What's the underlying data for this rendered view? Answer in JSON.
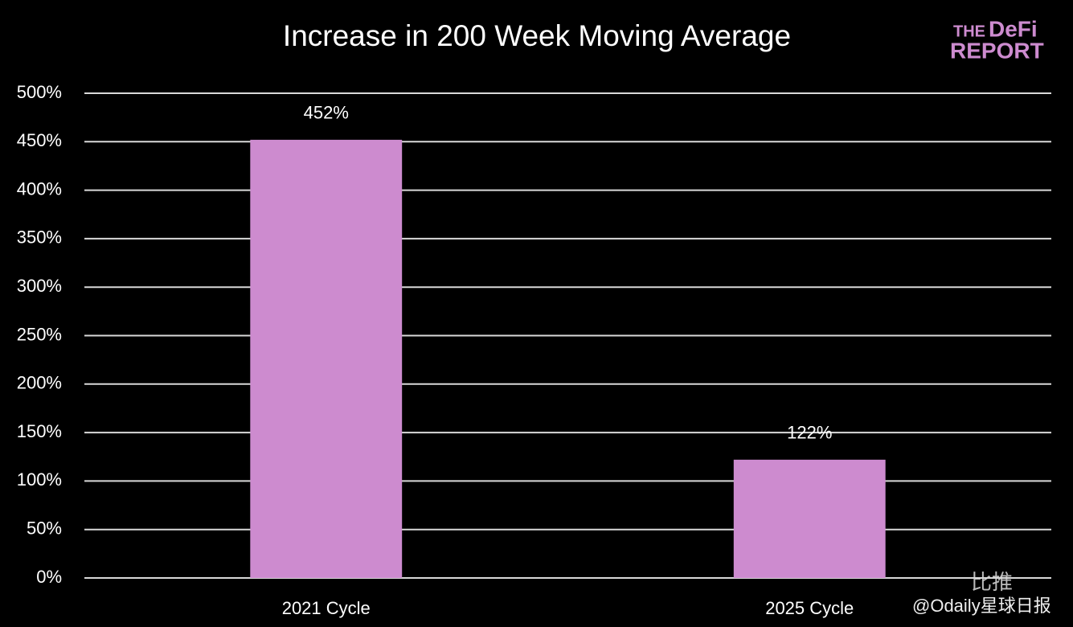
{
  "chart_data": {
    "type": "bar",
    "title": "Increase in 200 Week Moving Average",
    "categories": [
      "2021 Cycle",
      "2025 Cycle"
    ],
    "values": [
      452,
      122
    ],
    "value_labels": [
      "452%",
      "122%"
    ],
    "color": "#cd8bcf",
    "ylim": [
      0,
      500
    ],
    "yticks": [
      {
        "value": 0,
        "label": "0%"
      },
      {
        "value": 50,
        "label": "50%"
      },
      {
        "value": 100,
        "label": "100%"
      },
      {
        "value": 150,
        "label": "150%"
      },
      {
        "value": 200,
        "label": "200%"
      },
      {
        "value": 250,
        "label": "250%"
      },
      {
        "value": 300,
        "label": "300%"
      },
      {
        "value": 350,
        "label": "350%"
      },
      {
        "value": 400,
        "label": "400%"
      },
      {
        "value": 450,
        "label": "450%"
      },
      {
        "value": 500,
        "label": "500%"
      }
    ],
    "grid": true
  },
  "logo": {
    "line1": "THE",
    "line1b": "DeFi",
    "line2": "REPORT"
  },
  "watermark": {
    "site": "比推",
    "handle": "@Odaily星球日报"
  }
}
